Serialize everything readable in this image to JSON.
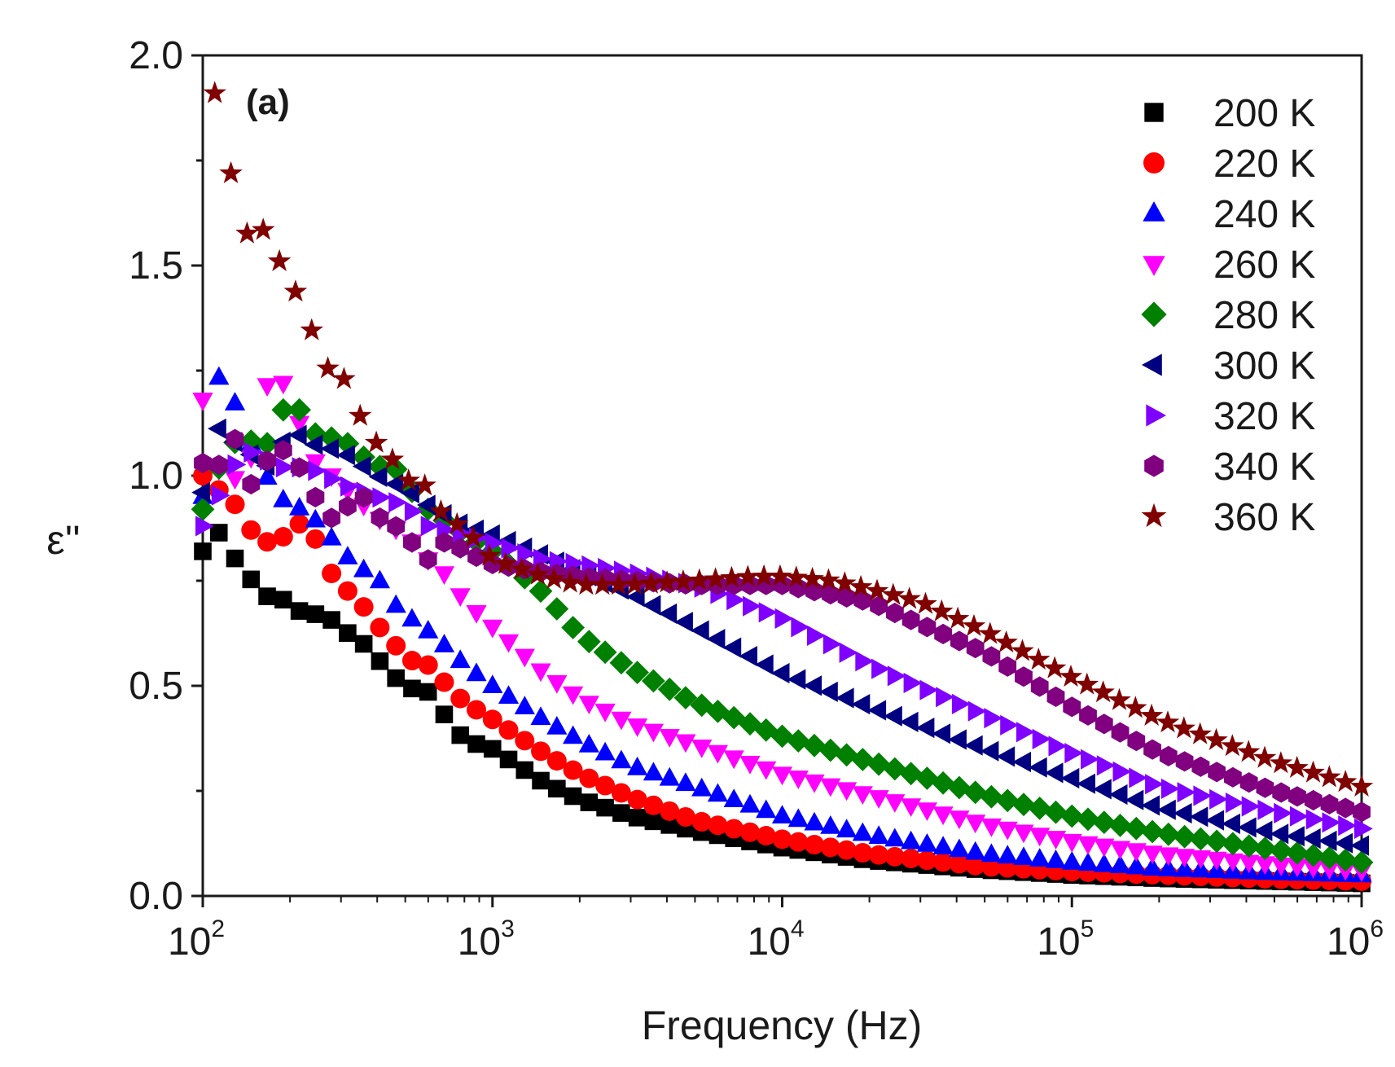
{
  "chart_data": {
    "type": "scatter",
    "panel_label": "(a)",
    "xlabel": "Frequency (Hz)",
    "ylabel": "ε''",
    "x_scale": "log",
    "xlim": [
      100,
      1000000
    ],
    "ylim": [
      0,
      2.0
    ],
    "x_ticks": [
      {
        "base": "10",
        "exp": "2"
      },
      {
        "base": "10",
        "exp": "3"
      },
      {
        "base": "10",
        "exp": "4"
      },
      {
        "base": "10",
        "exp": "5"
      },
      {
        "base": "10",
        "exp": "6"
      }
    ],
    "y_ticks": [
      "0.0",
      "0.5",
      "1.0",
      "1.5",
      "2.0"
    ],
    "legend_position": "top-right",
    "grid": false,
    "series": [
      {
        "name": "200 K",
        "marker": "square",
        "color": "#000000",
        "x": [
          100,
          110,
          130,
          160,
          180,
          200,
          230,
          260,
          300,
          330,
          380,
          450,
          500,
          580,
          650,
          800,
          1000,
          1500,
          2000,
          3000,
          5000,
          10000,
          20000,
          50000,
          100000,
          200000,
          500000,
          1000000
        ],
        "y": [
          0.82,
          0.88,
          0.8,
          0.72,
          0.7,
          0.71,
          0.65,
          0.69,
          0.62,
          0.63,
          0.58,
          0.53,
          0.49,
          0.5,
          0.45,
          0.37,
          0.35,
          0.27,
          0.23,
          0.19,
          0.155,
          0.115,
          0.085,
          0.062,
          0.05,
          0.042,
          0.035,
          0.03
        ]
      },
      {
        "name": "220 K",
        "marker": "circle",
        "color": "#ff0000",
        "x": [
          100,
          130,
          150,
          180,
          200,
          230,
          260,
          300,
          330,
          380,
          450,
          500,
          580,
          700,
          800,
          1000,
          1500,
          2000,
          3000,
          5000,
          10000,
          20000,
          50000,
          100000,
          200000,
          500000,
          1000000
        ],
        "y": [
          1.0,
          0.93,
          0.86,
          0.83,
          0.88,
          0.89,
          0.81,
          0.72,
          0.73,
          0.66,
          0.61,
          0.56,
          0.56,
          0.5,
          0.46,
          0.42,
          0.34,
          0.29,
          0.235,
          0.18,
          0.135,
          0.1,
          0.07,
          0.058,
          0.05,
          0.04,
          0.035
        ]
      },
      {
        "name": "240 K",
        "marker": "triangle-up",
        "color": "#0000ff",
        "x": [
          100,
          115,
          150,
          180,
          220,
          260,
          300,
          350,
          400,
          450,
          500,
          600,
          700,
          800,
          1000,
          1500,
          2000,
          3000,
          5000,
          10000,
          20000,
          50000,
          100000,
          200000,
          500000,
          1000000
        ],
        "y": [
          0.95,
          1.26,
          1.06,
          0.95,
          0.92,
          0.88,
          0.82,
          0.78,
          0.76,
          0.7,
          0.67,
          0.63,
          0.59,
          0.55,
          0.5,
          0.42,
          0.37,
          0.31,
          0.26,
          0.19,
          0.145,
          0.1,
          0.08,
          0.065,
          0.055,
          0.05
        ]
      },
      {
        "name": "260 K",
        "marker": "triangle-down",
        "color": "#ff00ff",
        "x": [
          100,
          110,
          140,
          170,
          200,
          230,
          300,
          400,
          500,
          600,
          700,
          800,
          1000,
          1500,
          2000,
          3000,
          5000,
          10000,
          20000,
          50000,
          100000,
          200000,
          500000,
          1000000
        ],
        "y": [
          1.18,
          1.02,
          0.98,
          1.24,
          1.21,
          1.05,
          0.98,
          0.9,
          0.86,
          0.8,
          0.76,
          0.7,
          0.64,
          0.53,
          0.47,
          0.41,
          0.36,
          0.29,
          0.24,
          0.17,
          0.13,
          0.1,
          0.075,
          0.06
        ]
      },
      {
        "name": "280 K",
        "marker": "diamond",
        "color": "#008000",
        "x": [
          100,
          120,
          140,
          160,
          200,
          250,
          300,
          350,
          400,
          450,
          500,
          600,
          800,
          1000,
          1500,
          2000,
          3000,
          5000,
          10000,
          20000,
          50000,
          100000,
          200000,
          500000,
          1000000
        ],
        "y": [
          0.92,
          1.06,
          1.1,
          1.05,
          1.19,
          1.09,
          1.09,
          1.05,
          1.02,
          1.03,
          0.98,
          0.92,
          0.86,
          0.82,
          0.72,
          0.62,
          0.54,
          0.46,
          0.38,
          0.32,
          0.24,
          0.19,
          0.15,
          0.11,
          0.08
        ]
      },
      {
        "name": "300 K",
        "marker": "triangle-left",
        "color": "#000080",
        "x": [
          100,
          110,
          140,
          170,
          200,
          250,
          300,
          400,
          500,
          600,
          800,
          1000,
          1500,
          2000,
          3000,
          5000,
          10000,
          20000,
          50000,
          100000,
          200000,
          500000,
          1000000
        ],
        "y": [
          0.96,
          1.12,
          1.06,
          1.02,
          1.11,
          1.07,
          1.06,
          1.0,
          0.97,
          0.93,
          0.88,
          0.86,
          0.81,
          0.77,
          0.72,
          0.64,
          0.53,
          0.45,
          0.35,
          0.28,
          0.21,
          0.15,
          0.12
        ]
      },
      {
        "name": "320 K",
        "marker": "triangle-right",
        "color": "#8000ff",
        "x": [
          100,
          130,
          150,
          180,
          220,
          250,
          300,
          400,
          500,
          600,
          800,
          1000,
          1500,
          2000,
          3000,
          5000,
          10000,
          20000,
          50000,
          100000,
          200000,
          500000,
          1000000
        ],
        "y": [
          0.88,
          1.03,
          1.06,
          1.02,
          1.02,
          1.01,
          0.98,
          0.95,
          0.93,
          0.88,
          0.86,
          0.84,
          0.8,
          0.79,
          0.77,
          0.74,
          0.66,
          0.55,
          0.43,
          0.34,
          0.26,
          0.2,
          0.16
        ]
      },
      {
        "name": "340 K",
        "marker": "hexagon",
        "color": "#800080",
        "x": [
          100,
          110,
          130,
          150,
          180,
          200,
          230,
          260,
          300,
          350,
          400,
          450,
          500,
          550,
          600,
          700,
          800,
          1000,
          1500,
          2000,
          3000,
          5000,
          10000,
          20000,
          50000,
          100000,
          200000,
          500000,
          1000000
        ],
        "y": [
          1.03,
          1.01,
          1.09,
          0.96,
          1.09,
          1.03,
          1.01,
          0.89,
          0.91,
          0.96,
          0.9,
          0.9,
          0.83,
          0.85,
          0.8,
          0.85,
          0.82,
          0.79,
          0.77,
          0.76,
          0.75,
          0.74,
          0.74,
          0.7,
          0.58,
          0.45,
          0.34,
          0.25,
          0.2
        ]
      },
      {
        "name": "360 K",
        "marker": "star",
        "color": "#800000",
        "x": [
          110,
          125,
          140,
          155,
          180,
          200,
          220,
          250,
          280,
          310,
          370,
          450,
          500,
          580,
          650,
          800,
          900,
          1000,
          1500,
          2000,
          3000,
          5000,
          8000,
          10000,
          15000,
          20000,
          30000,
          50000,
          100000,
          200000,
          500000,
          1000000
        ],
        "y": [
          1.91,
          1.72,
          1.57,
          1.61,
          1.52,
          1.47,
          1.4,
          1.31,
          1.23,
          1.23,
          1.1,
          1.04,
          0.99,
          0.98,
          0.92,
          0.87,
          0.84,
          0.8,
          0.76,
          0.74,
          0.74,
          0.75,
          0.76,
          0.76,
          0.75,
          0.73,
          0.7,
          0.63,
          0.52,
          0.42,
          0.32,
          0.26
        ]
      }
    ]
  }
}
